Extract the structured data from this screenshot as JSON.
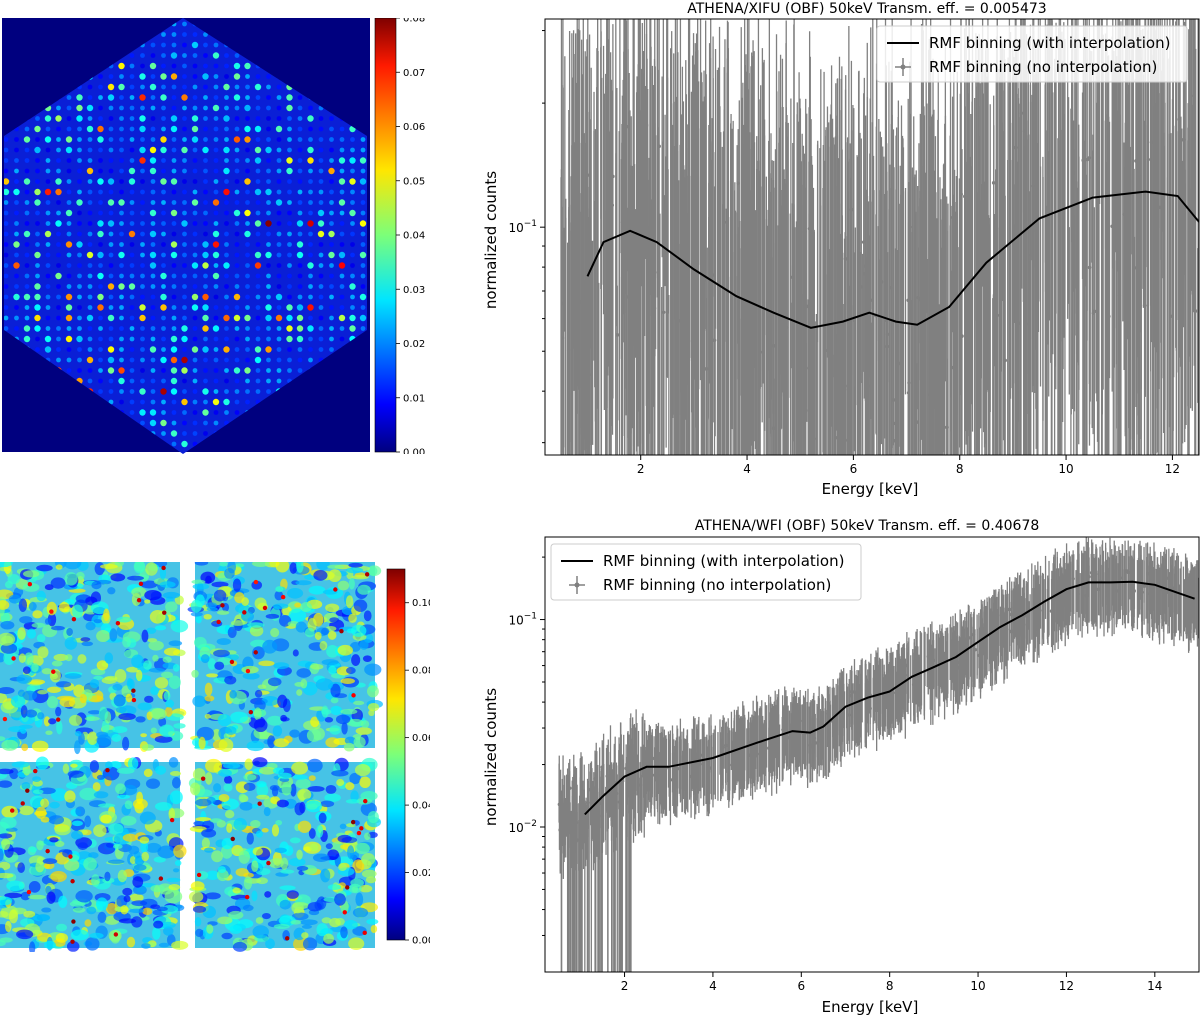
{
  "chart_data": [
    {
      "type": "heatmap",
      "colormap": "jet",
      "shape": "hexagonal detector pixel array on dark-blue background",
      "colorbar": {
        "ticks": [
          "0.00",
          "0.01",
          "0.02",
          "0.03",
          "0.04",
          "0.05",
          "0.06",
          "0.07",
          "0.08"
        ],
        "range": [
          0,
          0.08
        ]
      }
    },
    {
      "type": "line",
      "title": "ATHENA/XIFU (OBF) 50keV Transm. eff. = 0.005473",
      "xlabel": "Energy [keV]",
      "ylabel": "normalized counts",
      "yscale": "log",
      "xlim": [
        0.2,
        12.5
      ],
      "ylim": [
        0.028,
        0.32
      ],
      "x_ticks": [
        "2",
        "4",
        "6",
        "8",
        "10",
        "12"
      ],
      "y_ticks": [
        {
          "label": "10",
          "exp": "−1",
          "value": 0.1
        }
      ],
      "legend": "top-right",
      "series": [
        {
          "name": "RMF binning (with interpolation)",
          "color": "#000000",
          "style": "line",
          "x": [
            1.0,
            1.3,
            1.8,
            2.3,
            3.0,
            3.8,
            4.5,
            5.2,
            5.8,
            6.3,
            6.8,
            7.2,
            7.8,
            8.5,
            9.5,
            10.5,
            11.5,
            12.1,
            12.5
          ],
          "y": [
            0.076,
            0.092,
            0.098,
            0.092,
            0.079,
            0.068,
            0.062,
            0.057,
            0.059,
            0.062,
            0.059,
            0.058,
            0.064,
            0.082,
            0.105,
            0.118,
            0.122,
            0.119,
            0.103
          ]
        },
        {
          "name": "RMF binning (no interpolation)",
          "color": "#808080",
          "style": "errorbar",
          "x_range": [
            0.5,
            12.5
          ],
          "noise": "high"
        }
      ]
    },
    {
      "type": "heatmap",
      "colormap": "jet",
      "shape": "four square detector quadrants (2x2)",
      "colorbar": {
        "ticks": [
          "0.00",
          "0.02",
          "0.04",
          "0.06",
          "0.08",
          "0.10"
        ],
        "range": [
          0,
          0.11
        ]
      }
    },
    {
      "type": "line",
      "title": "ATHENA/WFI (OBF) 50keV Transm. eff. = 0.40678",
      "xlabel": "Energy [keV]",
      "ylabel": "normalized counts",
      "yscale": "log",
      "xlim": [
        0.2,
        15
      ],
      "ylim": [
        0.002,
        0.25
      ],
      "x_ticks": [
        "2",
        "4",
        "6",
        "8",
        "10",
        "12",
        "14"
      ],
      "y_ticks": [
        {
          "label": "10",
          "exp": "−2",
          "value": 0.01
        },
        {
          "label": "10",
          "exp": "−1",
          "value": 0.1
        }
      ],
      "legend": "top-left",
      "series": [
        {
          "name": "RMF binning (with interpolation)",
          "color": "#000000",
          "style": "line",
          "x": [
            1.1,
            1.5,
            2.0,
            2.5,
            3.0,
            4.0,
            5.0,
            5.8,
            6.2,
            6.5,
            7.0,
            7.5,
            8.0,
            8.5,
            9.0,
            9.5,
            10.0,
            10.5,
            11.0,
            11.5,
            12.0,
            12.5,
            13.0,
            13.5,
            14.0,
            14.9
          ],
          "y": [
            0.0115,
            0.014,
            0.0175,
            0.0195,
            0.0195,
            0.0215,
            0.0255,
            0.029,
            0.0285,
            0.0305,
            0.038,
            0.042,
            0.045,
            0.053,
            0.059,
            0.066,
            0.078,
            0.092,
            0.105,
            0.122,
            0.14,
            0.151,
            0.151,
            0.152,
            0.147,
            0.126
          ]
        },
        {
          "name": "RMF binning (no interpolation)",
          "color": "#808080",
          "style": "errorbar",
          "x_range": [
            0.5,
            15
          ],
          "noise": "moderate"
        }
      ]
    }
  ]
}
